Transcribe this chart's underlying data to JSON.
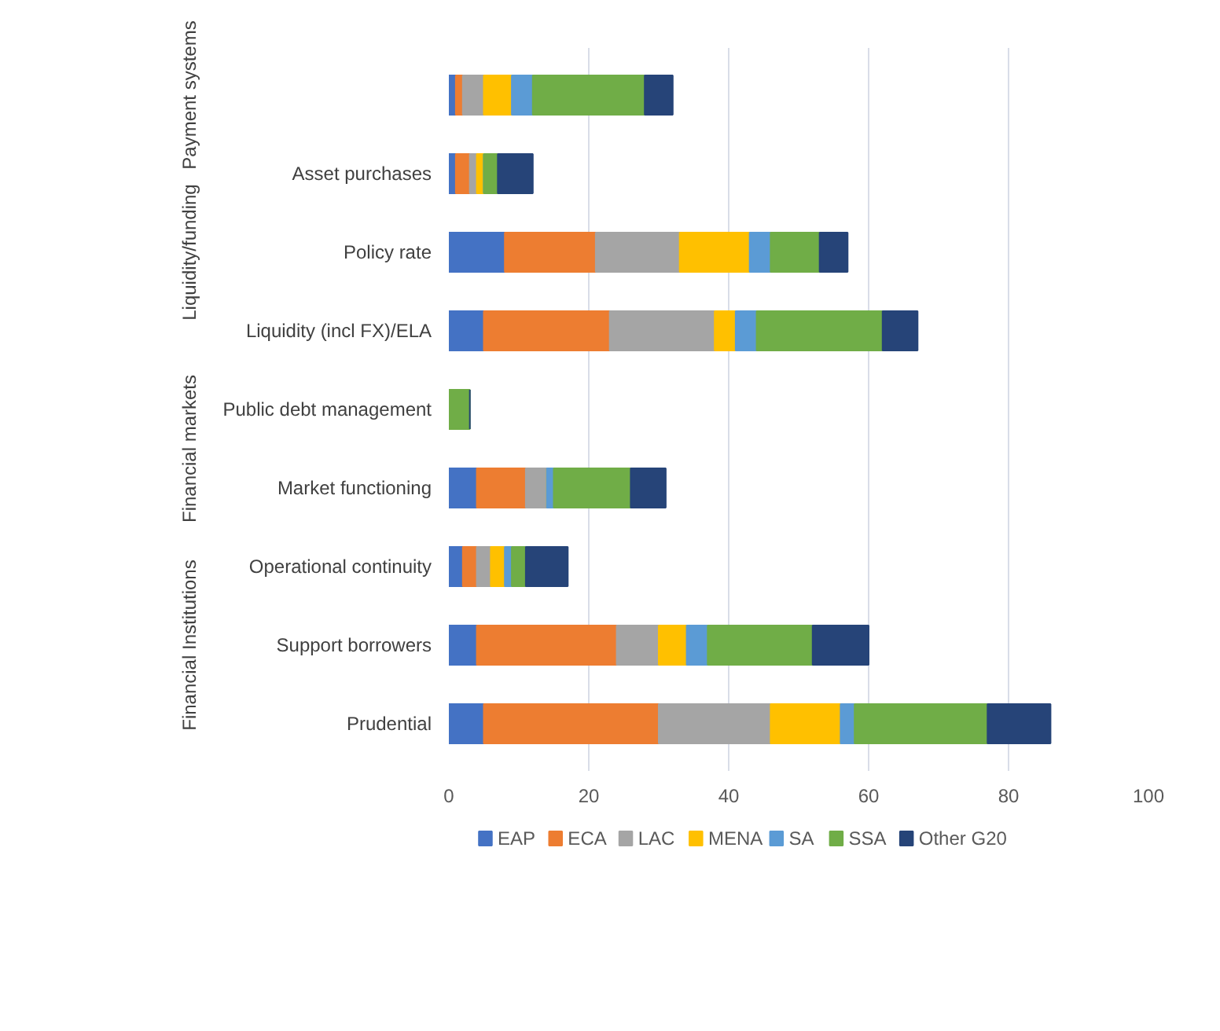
{
  "chart_data": {
    "type": "bar",
    "orientation": "horizontal",
    "stacked": true,
    "categories": [
      null,
      "Asset purchases",
      "Policy rate",
      "Liquidity (incl FX)/ELA",
      "Public debt management",
      "Market functioning",
      "Operational continuity",
      "Support borrowers",
      "Prudential"
    ],
    "series": [
      {
        "name": "EAP",
        "color": "#4472c4",
        "values": [
          1,
          1,
          8,
          5,
          0,
          4,
          2,
          4,
          5
        ]
      },
      {
        "name": "ECA",
        "color": "#ed7d31",
        "values": [
          1,
          2,
          13,
          18,
          0,
          7,
          2,
          20,
          25
        ]
      },
      {
        "name": "LAC",
        "color": "#a5a5a5",
        "values": [
          3,
          1,
          12,
          15,
          0,
          3,
          2,
          6,
          16
        ]
      },
      {
        "name": "MENA",
        "color": "#ffc000",
        "values": [
          4,
          1,
          10,
          3,
          0,
          0,
          2,
          4,
          10
        ]
      },
      {
        "name": "SA",
        "color": "#5b9bd5",
        "values": [
          3,
          0,
          3,
          3,
          0,
          1,
          1,
          3,
          2
        ]
      },
      {
        "name": "SSA",
        "color": "#70ad47",
        "values": [
          16,
          2,
          7,
          18,
          3,
          11,
          2,
          15,
          19
        ]
      },
      {
        "name": "Other G20",
        "color": "#264478",
        "values": [
          4,
          5,
          4,
          5,
          0,
          5,
          6,
          8,
          9
        ]
      }
    ],
    "annotations": [
      "Payment systems",
      "Liquidity/funding",
      "Financial markets",
      "Financial Institutions"
    ],
    "xlim": [
      0,
      100
    ],
    "xticks": [
      0,
      20,
      40,
      60,
      80,
      100
    ],
    "grid": "x",
    "legend": "bottom"
  }
}
